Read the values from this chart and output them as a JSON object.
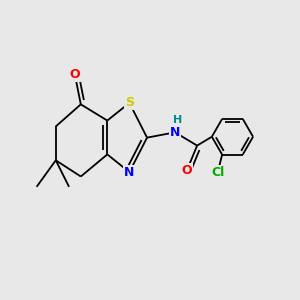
{
  "bg_color": "#e8e8e8",
  "bond_color": "#000000",
  "bond_width": 1.3,
  "atom_colors": {
    "O": "#ff0000",
    "S": "#cccc00",
    "N": "#0000ff",
    "H": "#008b8b",
    "Cl": "#00aa00"
  },
  "font_size": 9
}
